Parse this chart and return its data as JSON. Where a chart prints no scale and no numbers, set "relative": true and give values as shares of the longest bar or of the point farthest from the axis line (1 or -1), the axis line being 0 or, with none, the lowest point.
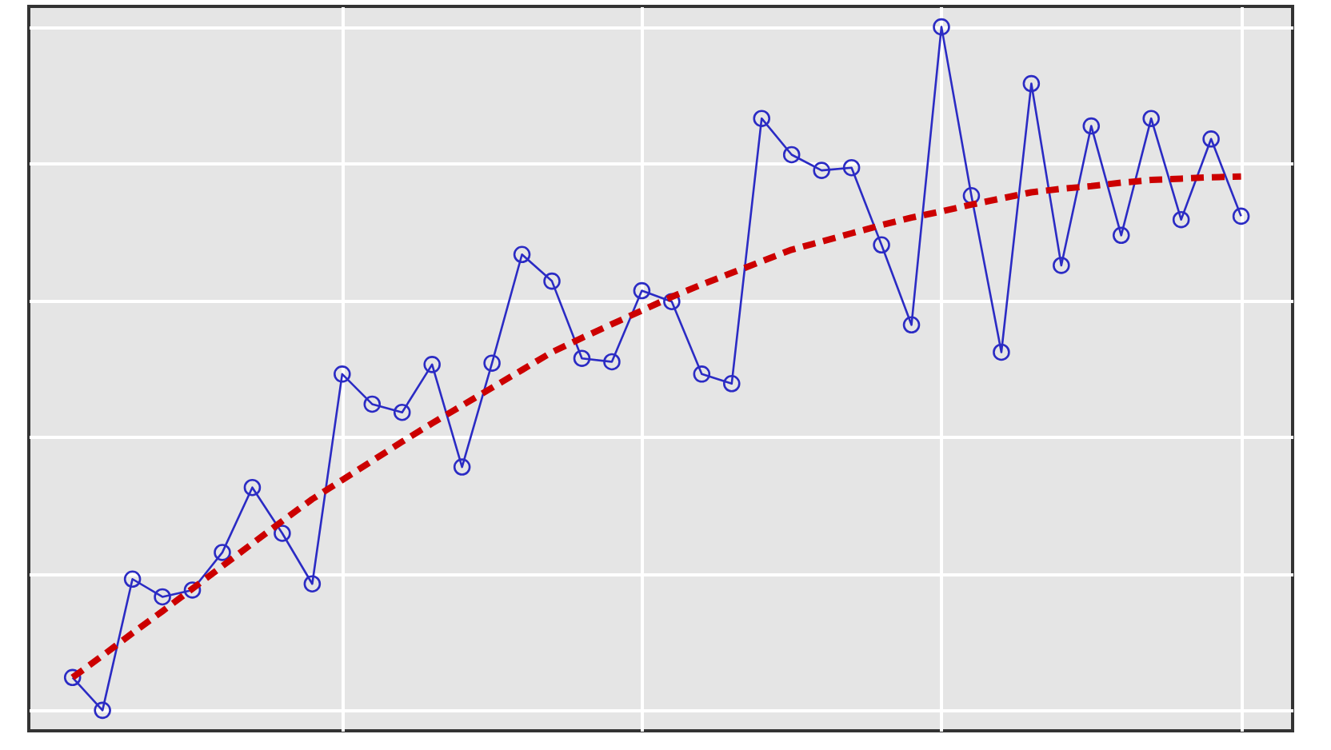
{
  "chart_data": {
    "type": "line",
    "relative": true,
    "categories": [
      null,
      null,
      null,
      null,
      null,
      null,
      null,
      null,
      null,
      null,
      null,
      null,
      null,
      null,
      null,
      null,
      null,
      null,
      null,
      null,
      null,
      null,
      null,
      null,
      null,
      null,
      null,
      null,
      null,
      null,
      null,
      null,
      null,
      null,
      null,
      null,
      null,
      null,
      null,
      null
    ],
    "tick_labels": false,
    "grid": true,
    "marker": "circle",
    "line_style": "solid",
    "series": [
      {
        "color": "#2b2bc4",
        "values": [
          0.048,
          0,
          0.192,
          0.166,
          0.176,
          0.231,
          0.326,
          0.259,
          0.185,
          0.492,
          0.448,
          0.436,
          0.506,
          0.356,
          0.508,
          0.667,
          0.628,
          0.515,
          0.51,
          0.614,
          0.598,
          0.492,
          0.478,
          0.866,
          0.813,
          0.79,
          0.794,
          0.681,
          0.564,
          1,
          0.753,
          0.524,
          0.917,
          0.651,
          0.855,
          0.695,
          0.866,
          0.718,
          0.836,
          0.723
        ]
      },
      {
        "color": "#cc0000",
        "marker": "none",
        "line_style": "dashed",
        "values": [
          0.048,
          0.08,
          0.113,
          0.145,
          0.178,
          0.211,
          0.244,
          0.277,
          0.309,
          0.337,
          0.365,
          0.393,
          0.42,
          0.446,
          0.472,
          0.498,
          0.524,
          0.545,
          0.565,
          0.585,
          0.605,
          0.623,
          0.64,
          0.657,
          0.674,
          0.686,
          0.698,
          0.71,
          0.721,
          0.73,
          0.74,
          0.749,
          0.758,
          0.763,
          0.767,
          0.772,
          0.776,
          0.778,
          0.78,
          0.781
        ]
      }
    ]
  }
}
